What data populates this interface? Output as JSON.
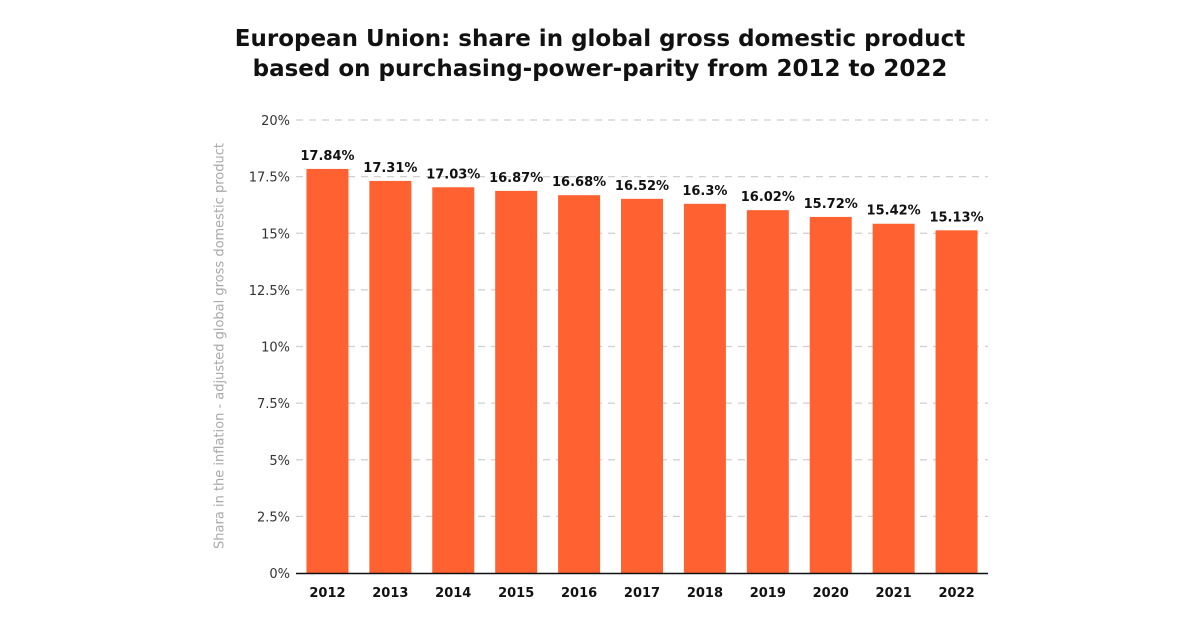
{
  "chart_data": {
    "type": "bar",
    "title_lines": [
      "European Union: share in global gross domestic product",
      "based on purchasing-power-parity from 2012 to 2022"
    ],
    "xlabel": "",
    "ylabel": "Shara in the inflation - adjusted global gross domestic product",
    "categories": [
      "2012",
      "2013",
      "2014",
      "2015",
      "2016",
      "2017",
      "2018",
      "2019",
      "2020",
      "2021",
      "2022"
    ],
    "values": [
      17.84,
      17.31,
      17.03,
      16.87,
      16.68,
      16.52,
      16.3,
      16.02,
      15.72,
      15.42,
      15.13
    ],
    "data_labels": [
      "17.84%",
      "17.31%",
      "17.03%",
      "16.87%",
      "16.68%",
      "16.52%",
      "16.3%",
      "16.02%",
      "15.72%",
      "15.42%",
      "15.13%"
    ],
    "ylim": [
      0,
      20
    ],
    "yticks": [
      0,
      2.5,
      5,
      7.5,
      10,
      12.5,
      15,
      17.5,
      20
    ],
    "ytick_labels": [
      "0%",
      "2.5%",
      "5%",
      "7.5%",
      "10%",
      "12.5%",
      "15%",
      "17.5%",
      "20%"
    ],
    "grid": true,
    "bar_color": "#ff6230",
    "legend": "none"
  }
}
